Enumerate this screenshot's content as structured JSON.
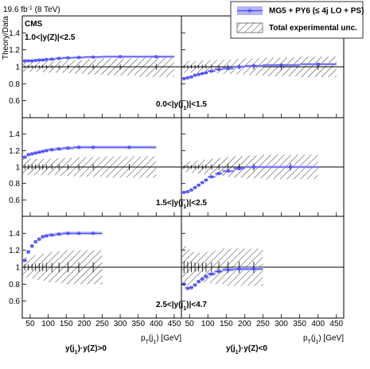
{
  "chart_data": {
    "type": "ratio-grid",
    "title_parts": [
      "19.6 fb",
      "-1",
      " (8 TeV)"
    ],
    "experiment": "CMS",
    "region": "1.0<|y(Z)|<2.5",
    "ylabel": "Theory/Data",
    "xlabel_parts": [
      "p",
      "T",
      "(j",
      "1",
      ") [GeV]"
    ],
    "xlim": [
      28,
      470
    ],
    "xticks": [
      50,
      100,
      150,
      200,
      250,
      300,
      350,
      400,
      450
    ],
    "ylim": [
      0.4,
      1.6
    ],
    "yticks": [
      0.6,
      0.8,
      1,
      1.2,
      1.4
    ],
    "reference": 1,
    "series": [
      {
        "name": "MG5 + PY6 (≤ 4j LO + PS)",
        "color": "#3333ff",
        "band_color": "#b3b3f5"
      },
      {
        "name": "Total experimental unc.",
        "color": "#000000"
      }
    ],
    "columns": [
      {
        "label_parts": [
          "y(j",
          "1",
          ")·y(Z)>0"
        ]
      },
      {
        "label_parts": [
          "y(j",
          "1",
          ")·y(Z)<0"
        ]
      }
    ],
    "rows": [
      {
        "label_parts": [
          "0.0<|y(j",
          "1",
          ")|<1.5"
        ]
      },
      {
        "label_parts": [
          "1.5<|y(j",
          "1",
          ")|<2.5"
        ]
      },
      {
        "label_parts": [
          "2.5<|y(j",
          "1",
          ")|<4.7"
        ]
      }
    ],
    "panels": [
      {
        "row": 0,
        "col": 0,
        "theory_err": 0.015,
        "bins": [
          30,
          40,
          50,
          60,
          70,
          80,
          90,
          100,
          120,
          140,
          170,
          200,
          250,
          350,
          450
        ],
        "values": [
          1.07,
          1.07,
          1.07,
          1.075,
          1.08,
          1.08,
          1.085,
          1.09,
          1.1,
          1.105,
          1.11,
          1.115,
          1.12,
          1.12
        ],
        "unc": [
          0.06,
          0.06,
          0.06,
          0.06,
          0.06,
          0.065,
          0.065,
          0.07,
          0.07,
          0.075,
          0.08,
          0.09,
          0.1,
          0.12
        ]
      },
      {
        "row": 0,
        "col": 1,
        "theory_err": 0.015,
        "bins": [
          30,
          40,
          50,
          60,
          70,
          80,
          90,
          100,
          120,
          140,
          170,
          200,
          250,
          350,
          450
        ],
        "values": [
          0.86,
          0.87,
          0.88,
          0.9,
          0.91,
          0.92,
          0.93,
          0.95,
          0.97,
          0.98,
          1.0,
          1.01,
          1.02,
          1.03
        ],
        "unc": [
          0.07,
          0.07,
          0.07,
          0.07,
          0.07,
          0.075,
          0.075,
          0.08,
          0.08,
          0.085,
          0.09,
          0.1,
          0.11,
          0.12
        ]
      },
      {
        "row": 1,
        "col": 0,
        "theory_err": 0.02,
        "bins": [
          30,
          40,
          50,
          60,
          70,
          80,
          90,
          100,
          120,
          140,
          170,
          200,
          250,
          400
        ],
        "values": [
          1.12,
          1.15,
          1.16,
          1.17,
          1.18,
          1.19,
          1.2,
          1.21,
          1.22,
          1.23,
          1.24,
          1.24,
          1.24
        ],
        "unc": [
          0.1,
          0.1,
          0.1,
          0.1,
          0.1,
          0.1,
          0.1,
          0.1,
          0.11,
          0.11,
          0.12,
          0.12,
          0.13
        ]
      },
      {
        "row": 1,
        "col": 1,
        "theory_err": 0.015,
        "bins": [
          30,
          40,
          50,
          60,
          70,
          80,
          90,
          100,
          120,
          140,
          170,
          200,
          250,
          400
        ],
        "values": [
          0.69,
          0.7,
          0.72,
          0.75,
          0.78,
          0.81,
          0.84,
          0.88,
          0.92,
          0.95,
          0.98,
          1.0,
          1.0
        ],
        "unc": [
          0.06,
          0.06,
          0.07,
          0.07,
          0.08,
          0.08,
          0.09,
          0.1,
          0.11,
          0.12,
          0.13,
          0.14,
          0.15
        ]
      },
      {
        "row": 2,
        "col": 0,
        "theory_err": 0.02,
        "bins": [
          30,
          40,
          50,
          60,
          70,
          80,
          90,
          100,
          120,
          140,
          170,
          200,
          250
        ],
        "values": [
          1.08,
          1.18,
          1.25,
          1.3,
          1.33,
          1.36,
          1.37,
          1.38,
          1.39,
          1.4,
          1.4,
          1.4
        ],
        "unc": [
          0.12,
          0.12,
          0.13,
          0.14,
          0.15,
          0.16,
          0.17,
          0.18,
          0.19,
          0.2,
          0.2,
          0.2
        ]
      },
      {
        "row": 2,
        "col": 1,
        "theory_err": 0.02,
        "bins": [
          30,
          40,
          50,
          60,
          70,
          80,
          90,
          100,
          120,
          140,
          170,
          200,
          250
        ],
        "values": [
          0.8,
          0.75,
          0.76,
          0.79,
          0.83,
          0.86,
          0.89,
          0.92,
          0.95,
          0.97,
          0.98,
          0.98
        ],
        "unc": [
          0.25,
          0.22,
          0.2,
          0.18,
          0.17,
          0.17,
          0.18,
          0.19,
          0.2,
          0.22,
          0.22,
          0.22
        ]
      }
    ]
  }
}
